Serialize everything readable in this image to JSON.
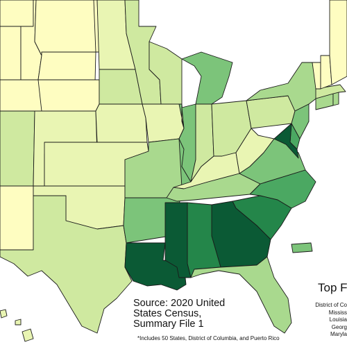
{
  "source": {
    "line1": "Source: 2020 United",
    "line2": "States Census,",
    "line3": "Summary File 1"
  },
  "footnote": "*Includes 50 States, District of Columbia, and Puerto Rico",
  "legend": {
    "title": "Top F",
    "entries": [
      "District of Co",
      "Mississ",
      "Louisia",
      "Georg",
      "Maryla"
    ]
  },
  "colors": {
    "c1": "#fefdc1",
    "c2": "#e9f5b3",
    "c3": "#cfe9a0",
    "c4": "#a9d98e",
    "c5": "#7cc47a",
    "c6": "#4ba862",
    "c7": "#24864a",
    "c8": "#0b5a35"
  },
  "states": [
    {
      "name": "WA",
      "shade": "c1"
    },
    {
      "name": "OR",
      "shade": "c1"
    },
    {
      "name": "ID",
      "shade": "c1"
    },
    {
      "name": "MT",
      "shade": "c1"
    },
    {
      "name": "WY",
      "shade": "c1"
    },
    {
      "name": "ND",
      "shade": "c1"
    },
    {
      "name": "SD",
      "shade": "c1"
    },
    {
      "name": "UT",
      "shade": "c1"
    },
    {
      "name": "NM",
      "shade": "c1"
    },
    {
      "name": "VT",
      "shade": "c1"
    },
    {
      "name": "ME",
      "shade": "c1"
    },
    {
      "name": "NH",
      "shade": "c1"
    },
    {
      "name": "CO",
      "shade": "c2"
    },
    {
      "name": "NE",
      "shade": "c2"
    },
    {
      "name": "KS",
      "shade": "c2"
    },
    {
      "name": "OK",
      "shade": "c2"
    },
    {
      "name": "IA",
      "shade": "c2"
    },
    {
      "name": "KY",
      "shade": "c2"
    },
    {
      "name": "WV",
      "shade": "c2"
    },
    {
      "name": "AZ",
      "shade": "c3"
    },
    {
      "name": "MN",
      "shade": "c3"
    },
    {
      "name": "WI",
      "shade": "c3"
    },
    {
      "name": "TX",
      "shade": "c3"
    },
    {
      "name": "IN",
      "shade": "c3"
    },
    {
      "name": "OH",
      "shade": "c3"
    },
    {
      "name": "PA",
      "shade": "c3"
    },
    {
      "name": "MA",
      "shade": "c3"
    },
    {
      "name": "MO",
      "shade": "c4"
    },
    {
      "name": "NY",
      "shade": "c4"
    },
    {
      "name": "CT",
      "shade": "c4"
    },
    {
      "name": "TN",
      "shade": "c4"
    },
    {
      "name": "FL",
      "shade": "c4"
    },
    {
      "name": "AR",
      "shade": "c5"
    },
    {
      "name": "IL",
      "shade": "c5"
    },
    {
      "name": "MI",
      "shade": "c5"
    },
    {
      "name": "NJ",
      "shade": "c5"
    },
    {
      "name": "VA",
      "shade": "c5"
    },
    {
      "name": "PR",
      "shade": "c5"
    },
    {
      "name": "NC",
      "shade": "c6"
    },
    {
      "name": "DE",
      "shade": "c6"
    },
    {
      "name": "AL",
      "shade": "c7"
    },
    {
      "name": "SC",
      "shade": "c7"
    },
    {
      "name": "MS",
      "shade": "c8"
    },
    {
      "name": "LA",
      "shade": "c8"
    },
    {
      "name": "GA",
      "shade": "c8"
    },
    {
      "name": "MD",
      "shade": "c8"
    },
    {
      "name": "RI",
      "shade": "c4"
    }
  ]
}
